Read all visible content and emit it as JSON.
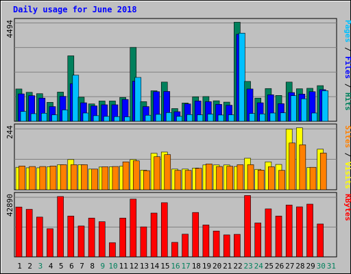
{
  "chart_data": {
    "type": "bar",
    "title": "Daily usage for June 2018",
    "categories": [
      "1",
      "2",
      "3",
      "4",
      "5",
      "6",
      "7",
      "8",
      "9",
      "10",
      "11",
      "12",
      "13",
      "14",
      "15",
      "16",
      "17",
      "18",
      "19",
      "20",
      "21",
      "22",
      "23",
      "24",
      "25",
      "26",
      "27",
      "28",
      "29",
      "30",
      "31"
    ],
    "weekend_days": [
      "3",
      "9",
      "10",
      "16",
      "17",
      "23",
      "24",
      "30",
      "31"
    ],
    "colors": {
      "background": "#C0C0C0",
      "title": "#0000FF",
      "grid": "#808080",
      "hits": "#00805C",
      "files": "#0000FF",
      "pages": "#00C0FF",
      "visits": "#FFFF00",
      "sites": "#FF8000",
      "kbytes": "#FF0000",
      "weekday_label": "#000000",
      "weekend_label": "#00805C"
    },
    "panels": [
      {
        "id": "hits_files_pages",
        "ymax": 4494,
        "ymax_label": "4494",
        "right_label": [
          {
            "text": "Pages",
            "color": "#00C0FF"
          },
          {
            "text": " / ",
            "color": "#000000"
          },
          {
            "text": "Files",
            "color": "#0000FF"
          },
          {
            "text": " / ",
            "color": "#000000"
          },
          {
            "text": "Hits",
            "color": "#00805C"
          }
        ],
        "series": [
          {
            "name": "Hits",
            "color": "#00805C",
            "values": [
              1450,
              1300,
              1240,
              850,
              1310,
              2940,
              1080,
              780,
              910,
              910,
              1070,
              3320,
              880,
              1370,
              1760,
              570,
              820,
              1100,
              1110,
              920,
              860,
              4450,
              1790,
              1040,
              1470,
              1160,
              1760,
              1460,
              1480,
              1600,
              0
            ]
          },
          {
            "name": "Files",
            "color": "#0000FF",
            "values": [
              1230,
              1150,
              1040,
              660,
              1120,
              1690,
              830,
              690,
              740,
              740,
              980,
              1800,
              660,
              1330,
              1340,
              430,
              780,
              910,
              880,
              760,
              720,
              3910,
              1450,
              830,
              1190,
              790,
              1290,
              1220,
              1330,
              1420,
              0
            ]
          },
          {
            "name": "Pages",
            "color": "#00C0FF",
            "values": [
              440,
              340,
              360,
              290,
              510,
              2070,
              370,
              250,
              220,
              210,
              200,
              1970,
              270,
              310,
              390,
              220,
              300,
              290,
              320,
              280,
              290,
              3960,
              350,
              330,
              370,
              380,
              1150,
              1010,
              370,
              1370,
              0
            ]
          }
        ]
      },
      {
        "id": "visits_sites",
        "ymax": 244,
        "ymax_label": "244",
        "right_label": [
          {
            "text": "Sites",
            "color": "#FF8000"
          },
          {
            "text": " / ",
            "color": "#000000"
          },
          {
            "text": "Visits",
            "color": "#FFFF00"
          }
        ],
        "series": [
          {
            "name": "Visits",
            "color": "#FFFF00",
            "values": [
              87,
              85,
              85,
              89,
              97,
              117,
              97,
              80,
              88,
              89,
              92,
              117,
              76,
              141,
              146,
              80,
              80,
              84,
              96,
              96,
              96,
              90,
              122,
              79,
              108,
              98,
              235,
              240,
              86,
              157,
              0
            ]
          },
          {
            "name": "Sites",
            "color": "#FF8000",
            "values": [
              92,
              90,
              90,
              92,
              97,
              97,
              97,
              80,
              89,
              90,
              108,
              112,
              74,
              128,
              136,
              75,
              75,
              83,
              100,
              90,
              91,
              97,
              97,
              76,
              89,
              75,
              181,
              174,
              87,
              142,
              0
            ]
          }
        ]
      },
      {
        "id": "kbytes",
        "ymax": 42890,
        "ymax_label": "42890",
        "right_label": [
          {
            "text": "KBytes",
            "color": "#FF0000"
          }
        ],
        "series": [
          {
            "name": "KBytes",
            "color": "#FF0000",
            "values": [
              34700,
              33100,
              27700,
              19600,
              42000,
              28400,
              21500,
              27000,
              24500,
              9900,
              27000,
              40200,
              20900,
              30500,
              37700,
              10100,
              15800,
              30900,
              22200,
              18000,
              15300,
              15700,
              42700,
              23600,
              33400,
              28400,
              36100,
              34800,
              36700,
              22900,
              0
            ]
          }
        ]
      }
    ]
  }
}
